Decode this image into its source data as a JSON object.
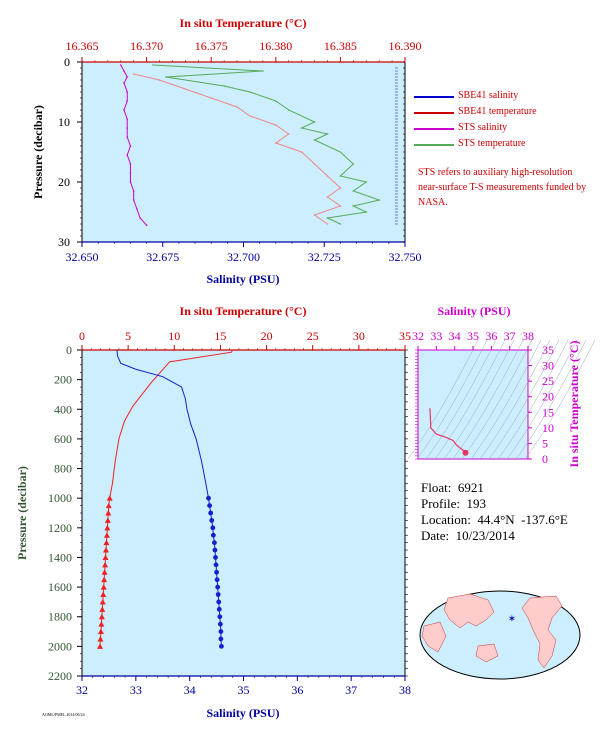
{
  "chart_data": [
    {
      "type": "line",
      "name": "surface_profile",
      "top_axis_title": "In situ Temperature (°C)",
      "top_axis_range": [
        16.365,
        16.39
      ],
      "top_axis_ticks": [
        "16.365",
        "16.370",
        "16.375",
        "16.380",
        "16.385",
        "16.390"
      ],
      "bottom_axis_title": "Salinity (PSU)",
      "bottom_axis_range": [
        32.65,
        32.75
      ],
      "bottom_axis_ticks": [
        "32.650",
        "32.675",
        "32.700",
        "32.725",
        "32.750"
      ],
      "ylabel": "Pressure (decibar)",
      "ylim": [
        0,
        30
      ],
      "y_reversed": true,
      "y_ticks": [
        "0",
        "10",
        "20",
        "30"
      ],
      "series": [
        {
          "name": "SBE41 salinity",
          "color": "#0000cc",
          "axis": "bottom",
          "points": []
        },
        {
          "name": "SBE41 temperature",
          "color": "#cc0000",
          "axis": "top",
          "points": []
        },
        {
          "name": "STS salinity",
          "color": "#cc00cc",
          "axis": "bottom",
          "points": [
            [
              32.662,
              0.5
            ],
            [
              32.663,
              1.5
            ],
            [
              32.664,
              2.5
            ],
            [
              32.663,
              3.5
            ],
            [
              32.664,
              5
            ],
            [
              32.664,
              6.5
            ],
            [
              32.663,
              8
            ],
            [
              32.664,
              9.5
            ],
            [
              32.664,
              11
            ],
            [
              32.664,
              12.5
            ],
            [
              32.665,
              14
            ],
            [
              32.664,
              15.5
            ],
            [
              32.665,
              17
            ],
            [
              32.665,
              18.5
            ],
            [
              32.665,
              20
            ],
            [
              32.666,
              21.5
            ],
            [
              32.666,
              23
            ],
            [
              32.667,
              24.5
            ],
            [
              32.668,
              26
            ],
            [
              32.67,
              27.2
            ]
          ]
        },
        {
          "name": "STS temperature",
          "color": "#55aa55",
          "axis": "top",
          "points": [
            [
              16.3705,
              0.5
            ],
            [
              16.379,
              1.5
            ],
            [
              16.3715,
              2.5
            ],
            [
              16.376,
              4
            ],
            [
              16.378,
              5
            ],
            [
              16.38,
              6.5
            ],
            [
              16.381,
              8
            ],
            [
              16.383,
              10
            ],
            [
              16.382,
              11
            ],
            [
              16.384,
              12
            ],
            [
              16.383,
              13
            ],
            [
              16.385,
              15
            ],
            [
              16.386,
              17
            ],
            [
              16.385,
              19
            ],
            [
              16.387,
              20
            ],
            [
              16.386,
              21.5
            ],
            [
              16.388,
              23
            ],
            [
              16.386,
              24
            ],
            [
              16.387,
              25
            ],
            [
              16.384,
              26
            ],
            [
              16.385,
              27
            ]
          ]
        },
        {
          "name": "SBE41 temperature (light)",
          "color": "#ee8888",
          "axis": "top",
          "points": [
            [
              16.369,
              2
            ],
            [
              16.371,
              3
            ],
            [
              16.373,
              4.5
            ],
            [
              16.375,
              6
            ],
            [
              16.377,
              7.5
            ],
            [
              16.378,
              9
            ],
            [
              16.38,
              10.5
            ],
            [
              16.381,
              12
            ],
            [
              16.38,
              13.5
            ],
            [
              16.382,
              15
            ],
            [
              16.383,
              17
            ],
            [
              16.384,
              19
            ],
            [
              16.385,
              21
            ],
            [
              16.384,
              22.5
            ],
            [
              16.385,
              24
            ],
            [
              16.383,
              25.5
            ],
            [
              16.384,
              27
            ]
          ]
        }
      ],
      "legend": [
        {
          "label": "SBE41 salinity",
          "color": "#0000cc"
        },
        {
          "label": "SBE41 temperature",
          "color": "#cc0000"
        },
        {
          "label": "STS salinity",
          "color": "#cc00cc"
        },
        {
          "label": "STS temperature",
          "color": "#55aa55"
        }
      ],
      "note": "STS refers to auxiliary high-resolution near-surface T-S measurements funded by NASA."
    },
    {
      "type": "line",
      "name": "full_profile",
      "top_axis_title": "In situ Temperature (°C)",
      "top_axis_range": [
        0,
        35
      ],
      "top_axis_ticks": [
        "0",
        "5",
        "10",
        "15",
        "20",
        "25",
        "30",
        "35"
      ],
      "bottom_axis_title": "Salinity (PSU)",
      "bottom_axis_range": [
        32,
        38
      ],
      "bottom_axis_ticks": [
        "32",
        "33",
        "34",
        "35",
        "36",
        "37",
        "38"
      ],
      "ylabel": "Pressure (decibar)",
      "ylim": [
        0,
        2200
      ],
      "y_reversed": true,
      "y_ticks": [
        "0",
        "200",
        "400",
        "600",
        "800",
        "1000",
        "1200",
        "1400",
        "1600",
        "1800",
        "2000",
        "2200"
      ],
      "series": [
        {
          "name": "Temperature",
          "color": "#ee2222",
          "axis": "top",
          "points": [
            [
              16.3,
              0
            ],
            [
              16.2,
              15
            ],
            [
              9.5,
              80
            ],
            [
              8.5,
              150
            ],
            [
              7.5,
              220
            ],
            [
              6.5,
              300
            ],
            [
              5.5,
              380
            ],
            [
              4.6,
              480
            ],
            [
              4.0,
              600
            ],
            [
              3.6,
              750
            ],
            [
              3.3,
              900
            ],
            [
              3.0,
              1000
            ],
            [
              2.9,
              1050
            ],
            [
              2.85,
              1100
            ],
            [
              2.8,
              1150
            ],
            [
              2.75,
              1200
            ],
            [
              2.7,
              1250
            ],
            [
              2.65,
              1300
            ],
            [
              2.6,
              1350
            ],
            [
              2.55,
              1400
            ],
            [
              2.5,
              1450
            ],
            [
              2.45,
              1500
            ],
            [
              2.4,
              1550
            ],
            [
              2.35,
              1600
            ],
            [
              2.3,
              1650
            ],
            [
              2.25,
              1700
            ],
            [
              2.2,
              1750
            ],
            [
              2.15,
              1800
            ],
            [
              2.1,
              1850
            ],
            [
              2.05,
              1900
            ],
            [
              2.0,
              1950
            ],
            [
              1.95,
              2000
            ]
          ]
        },
        {
          "name": "Salinity",
          "color": "#1122cc",
          "axis": "bottom",
          "points": [
            [
              32.65,
              0
            ],
            [
              32.66,
              40
            ],
            [
              32.72,
              90
            ],
            [
              33.0,
              130
            ],
            [
              33.5,
              180
            ],
            [
              33.85,
              250
            ],
            [
              33.92,
              330
            ],
            [
              33.95,
              400
            ],
            [
              34.02,
              500
            ],
            [
              34.12,
              600
            ],
            [
              34.22,
              750
            ],
            [
              34.3,
              900
            ],
            [
              34.35,
              1000
            ],
            [
              34.37,
              1050
            ],
            [
              34.39,
              1100
            ],
            [
              34.41,
              1150
            ],
            [
              34.43,
              1200
            ],
            [
              34.44,
              1250
            ],
            [
              34.46,
              1300
            ],
            [
              34.47,
              1350
            ],
            [
              34.48,
              1400
            ],
            [
              34.49,
              1450
            ],
            [
              34.5,
              1500
            ],
            [
              34.51,
              1550
            ],
            [
              34.52,
              1600
            ],
            [
              34.53,
              1650
            ],
            [
              34.54,
              1700
            ],
            [
              34.55,
              1750
            ],
            [
              34.56,
              1800
            ],
            [
              34.57,
              1850
            ],
            [
              34.58,
              1900
            ],
            [
              34.58,
              1950
            ],
            [
              34.59,
              2000
            ]
          ]
        }
      ],
      "marker_start_pressure": 1000
    },
    {
      "type": "scatter",
      "name": "ts_diagram",
      "top_axis_title": "Salinity (PSU)",
      "top_axis_range": [
        32,
        38
      ],
      "top_axis_ticks": [
        "32",
        "33",
        "34",
        "35",
        "36",
        "37",
        "38"
      ],
      "right_axis_title": "In situ Temperature (°C)",
      "right_axis_range": [
        0,
        35
      ],
      "right_axis_ticks": [
        "0",
        "5",
        "10",
        "15",
        "20",
        "25",
        "30",
        "35"
      ],
      "series": [
        {
          "name": "T-S",
          "color": "#ee3366",
          "points": [
            [
              32.65,
              16.3
            ],
            [
              32.7,
              10
            ],
            [
              33.0,
              8
            ],
            [
              33.5,
              7
            ],
            [
              33.9,
              6
            ],
            [
              34.1,
              4.5
            ],
            [
              34.3,
              3.5
            ],
            [
              34.45,
              2.9
            ],
            [
              34.5,
              2.6
            ],
            [
              34.59,
              2.0
            ]
          ]
        }
      ]
    }
  ],
  "float_info": {
    "float": "Float:  6921",
    "profile": "Profile:  193",
    "location": "Location:  44.4°N  -137.6°E",
    "date": "Date:  10/23/2014"
  },
  "footnote": "AOML/PMEL 2014/06/24",
  "colors": {
    "plot_bg": "#cceeff",
    "temp_axis": "#cc0000",
    "sal_axis": "#000099",
    "ts_axis": "#cc00cc",
    "pressure_label": "#335533"
  }
}
